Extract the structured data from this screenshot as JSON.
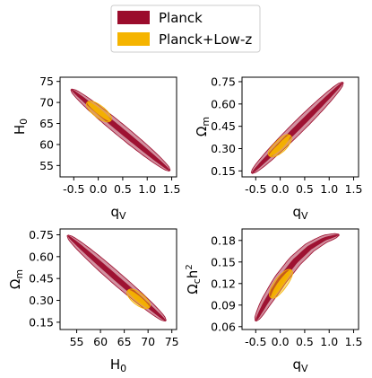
{
  "legend": {
    "entries": [
      {
        "label": "Planck",
        "color": "#9b0c2c"
      },
      {
        "label": "Planck+Low-z",
        "color": "#f5b400"
      }
    ]
  },
  "chart_data": [
    {
      "type": "scatter",
      "kind": "2D confidence contours",
      "xlabel": "q_V",
      "ylabel": "H_0",
      "xlim": [
        -0.78,
        1.6
      ],
      "ylim": [
        52.3,
        76.0
      ],
      "xticks": [
        "-0.5",
        "0.0",
        "0.5",
        "1.0",
        "1.5"
      ],
      "xtick_values": [
        -0.5,
        0.0,
        0.5,
        1.0,
        1.5
      ],
      "yticks": [
        "55",
        "60",
        "65",
        "70",
        "75"
      ],
      "ytick_values": [
        55,
        60,
        65,
        70,
        75
      ],
      "series": [
        {
          "name": "Planck",
          "color": "#9b0c2c",
          "center": [
            0.45,
            63.5
          ],
          "endpoints": [
            [
              -0.55,
              73.1
            ],
            [
              1.46,
              53.8
            ]
          ],
          "width_outer": 0.12,
          "width_inner": 0.055
        },
        {
          "name": "Planck+Low-z",
          "color": "#f5b400",
          "center": [
            0.02,
            67.8
          ],
          "endpoints": [
            [
              -0.22,
              70.1
            ],
            [
              0.25,
              65.6
            ]
          ],
          "width_outer": 0.1,
          "width_inner": 0.045
        }
      ]
    },
    {
      "type": "scatter",
      "kind": "2D confidence contours",
      "xlabel": "q_V",
      "ylabel": "Ω_m",
      "xlim": [
        -0.78,
        1.6
      ],
      "ylim": [
        0.11,
        0.78
      ],
      "xticks": [
        "-0.5",
        "0.0",
        "0.5",
        "1.0",
        "1.5"
      ],
      "xtick_values": [
        -0.5,
        0.0,
        0.5,
        1.0,
        1.5
      ],
      "yticks": [
        "0.15",
        "0.30",
        "0.45",
        "0.60",
        "0.75"
      ],
      "ytick_values": [
        0.15,
        0.3,
        0.45,
        0.6,
        0.75
      ],
      "series": [
        {
          "name": "Planck",
          "color": "#9b0c2c",
          "center": [
            0.35,
            0.44
          ],
          "endpoints": [
            [
              -0.58,
              0.135
            ],
            [
              1.28,
              0.745
            ]
          ],
          "width_outer": 0.12,
          "width_inner": 0.055
        },
        {
          "name": "Planck+Low-z",
          "color": "#f5b400",
          "center": [
            0.0,
            0.315
          ],
          "endpoints": [
            [
              -0.22,
              0.25
            ],
            [
              0.2,
              0.39
            ]
          ],
          "width_outer": 0.1,
          "width_inner": 0.045
        }
      ]
    },
    {
      "type": "scatter",
      "kind": "2D confidence contours",
      "xlabel": "H_0",
      "ylabel": "Ω_m",
      "xlim": [
        51.5,
        76.0
      ],
      "ylim": [
        0.1,
        0.79
      ],
      "xticks": [
        "55",
        "60",
        "65",
        "70",
        "75"
      ],
      "xtick_values": [
        55,
        60,
        65,
        70,
        75
      ],
      "yticks": [
        "0.15",
        "0.30",
        "0.45",
        "0.60",
        "0.75"
      ],
      "ytick_values": [
        0.15,
        0.3,
        0.45,
        0.6,
        0.75
      ],
      "series": [
        {
          "name": "Planck",
          "color": "#9b0c2c",
          "center": [
            63.4,
            0.45
          ],
          "endpoints": [
            [
              53.1,
              0.745
            ],
            [
              73.7,
              0.16
            ]
          ],
          "width_outer": 0.12,
          "width_inner": 0.055
        },
        {
          "name": "Planck+Low-z",
          "color": "#f5b400",
          "center": [
            68.0,
            0.31
          ],
          "endpoints": [
            [
              65.8,
              0.37
            ],
            [
              70.2,
              0.25
            ]
          ],
          "width_outer": 0.1,
          "width_inner": 0.045
        }
      ]
    },
    {
      "type": "scatter",
      "kind": "2D confidence contours",
      "xlabel": "q_V",
      "ylabel": "Ω_c h^2",
      "xlim": [
        -0.78,
        1.6
      ],
      "ylim": [
        0.056,
        0.196
      ],
      "xticks": [
        "-0.5",
        "0.0",
        "0.5",
        "1.0",
        "1.5"
      ],
      "xtick_values": [
        -0.5,
        0.0,
        0.5,
        1.0,
        1.5
      ],
      "yticks": [
        "0.06",
        "0.09",
        "0.12",
        "0.15",
        "0.18"
      ],
      "ytick_values": [
        0.06,
        0.09,
        0.12,
        0.15,
        0.18
      ],
      "series": [
        {
          "name": "Planck",
          "color": "#9b0c2c",
          "curve": [
            [
              -0.5,
              0.068
            ],
            [
              -0.3,
              0.093
            ],
            [
              0.0,
              0.125
            ],
            [
              0.3,
              0.151
            ],
            [
              0.6,
              0.17
            ],
            [
              0.9,
              0.182
            ],
            [
              1.2,
              0.188
            ]
          ],
          "width_outer": 0.12,
          "width_inner": 0.055
        },
        {
          "name": "Planck+Low-z",
          "color": "#f5b400",
          "curve": [
            [
              -0.18,
              0.1
            ],
            [
              -0.08,
              0.111
            ],
            [
              0.02,
              0.121
            ],
            [
              0.12,
              0.13
            ],
            [
              0.22,
              0.139
            ]
          ],
          "width_outer": 0.1,
          "width_inner": 0.045
        }
      ]
    }
  ]
}
